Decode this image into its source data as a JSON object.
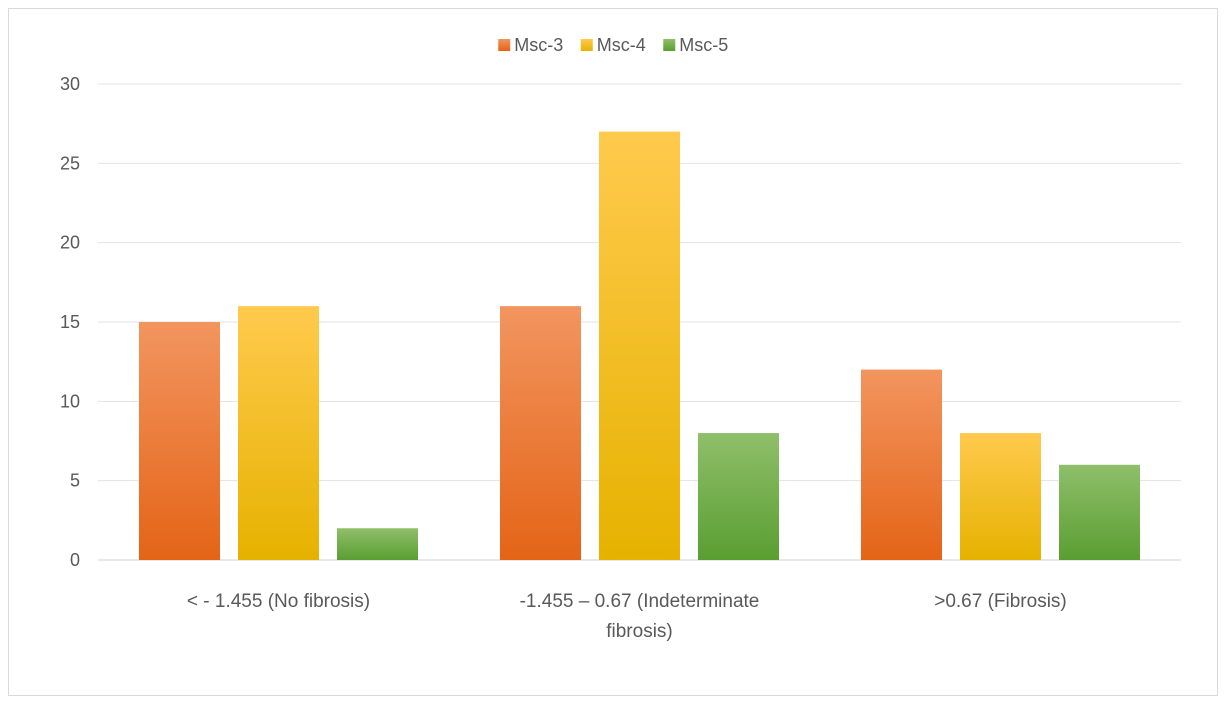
{
  "chart_data": {
    "type": "bar",
    "categories": [
      [
        "< - 1.455 (No fibrosis)"
      ],
      [
        "-1.455 – 0.67 (Indeterminate",
        "fibrosis)"
      ],
      [
        ">0.67 (Fibrosis)"
      ]
    ],
    "series": [
      {
        "name": "Msc-3",
        "values": [
          15,
          16,
          12
        ],
        "color_top": "#f2955f",
        "color_bottom": "#e46417"
      },
      {
        "name": "Msc-4",
        "values": [
          16,
          27,
          8
        ],
        "color_top": "#ffca4d",
        "color_bottom": "#e6b200"
      },
      {
        "name": "Msc-5",
        "values": [
          2,
          8,
          6
        ],
        "color_top": "#8fbf6a",
        "color_bottom": "#5a9e32"
      }
    ],
    "ylim": [
      0,
      30
    ],
    "yticks": [
      0,
      5,
      10,
      15,
      20,
      25,
      30
    ],
    "grid": true,
    "legend_position": "top-center",
    "title": "",
    "xlabel": "",
    "ylabel": ""
  }
}
